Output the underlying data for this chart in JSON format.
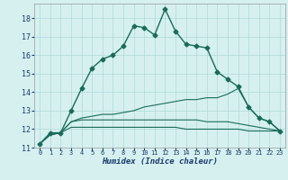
{
  "xlabel": "Humidex (Indice chaleur)",
  "bg_color": "#d6f0f0",
  "grid_color": "#b0d8d8",
  "line_color": "#1a6b5a",
  "xlim": [
    -0.5,
    23.5
  ],
  "ylim": [
    11,
    18.8
  ],
  "yticks": [
    11,
    12,
    13,
    14,
    15,
    16,
    17,
    18
  ],
  "xticks": [
    0,
    1,
    2,
    3,
    4,
    5,
    6,
    7,
    8,
    9,
    10,
    11,
    12,
    13,
    14,
    15,
    16,
    17,
    18,
    19,
    20,
    21,
    22,
    23
  ],
  "series": [
    {
      "x": [
        0,
        1,
        2,
        3,
        4,
        5,
        6,
        7,
        8,
        9,
        10,
        11,
        12,
        13,
        14,
        15,
        16,
        17,
        18,
        19,
        20,
        21,
        22,
        23
      ],
      "y": [
        11.2,
        11.8,
        11.8,
        13.0,
        14.2,
        15.3,
        15.8,
        16.0,
        16.5,
        17.6,
        17.5,
        17.1,
        18.5,
        17.3,
        16.6,
        16.5,
        16.4,
        15.1,
        14.7,
        14.3,
        13.2,
        12.6,
        12.4,
        11.9
      ],
      "marker": "D",
      "markersize": 2.5,
      "linewidth": 1.0
    },
    {
      "x": [
        0,
        1,
        2,
        3,
        4,
        5,
        6,
        7,
        8,
        9,
        10,
        11,
        12,
        13,
        14,
        15,
        16,
        17,
        18,
        19,
        20,
        21,
        22,
        23
      ],
      "y": [
        11.2,
        11.7,
        11.8,
        12.1,
        12.1,
        12.1,
        12.1,
        12.1,
        12.1,
        12.1,
        12.1,
        12.1,
        12.1,
        12.1,
        12.0,
        12.0,
        12.0,
        12.0,
        12.0,
        12.0,
        11.9,
        11.9,
        11.9,
        11.9
      ],
      "marker": null,
      "markersize": 0,
      "linewidth": 0.8
    },
    {
      "x": [
        0,
        1,
        2,
        3,
        4,
        5,
        6,
        7,
        8,
        9,
        10,
        11,
        12,
        13,
        14,
        15,
        16,
        17,
        18,
        19,
        20,
        21,
        22,
        23
      ],
      "y": [
        11.2,
        11.7,
        11.8,
        12.4,
        12.5,
        12.5,
        12.5,
        12.5,
        12.5,
        12.5,
        12.5,
        12.5,
        12.5,
        12.5,
        12.5,
        12.5,
        12.4,
        12.4,
        12.4,
        12.3,
        12.2,
        12.1,
        12.0,
        11.9
      ],
      "marker": null,
      "markersize": 0,
      "linewidth": 0.8
    },
    {
      "x": [
        0,
        1,
        2,
        3,
        4,
        5,
        6,
        7,
        8,
        9,
        10,
        11,
        12,
        13,
        14,
        15,
        16,
        17,
        18,
        19,
        20,
        21,
        22,
        23
      ],
      "y": [
        11.2,
        11.7,
        11.8,
        12.4,
        12.6,
        12.7,
        12.8,
        12.8,
        12.9,
        13.0,
        13.2,
        13.3,
        13.4,
        13.5,
        13.6,
        13.6,
        13.7,
        13.7,
        13.9,
        14.2,
        13.2,
        12.6,
        12.4,
        11.9
      ],
      "marker": null,
      "markersize": 0,
      "linewidth": 0.8
    }
  ]
}
